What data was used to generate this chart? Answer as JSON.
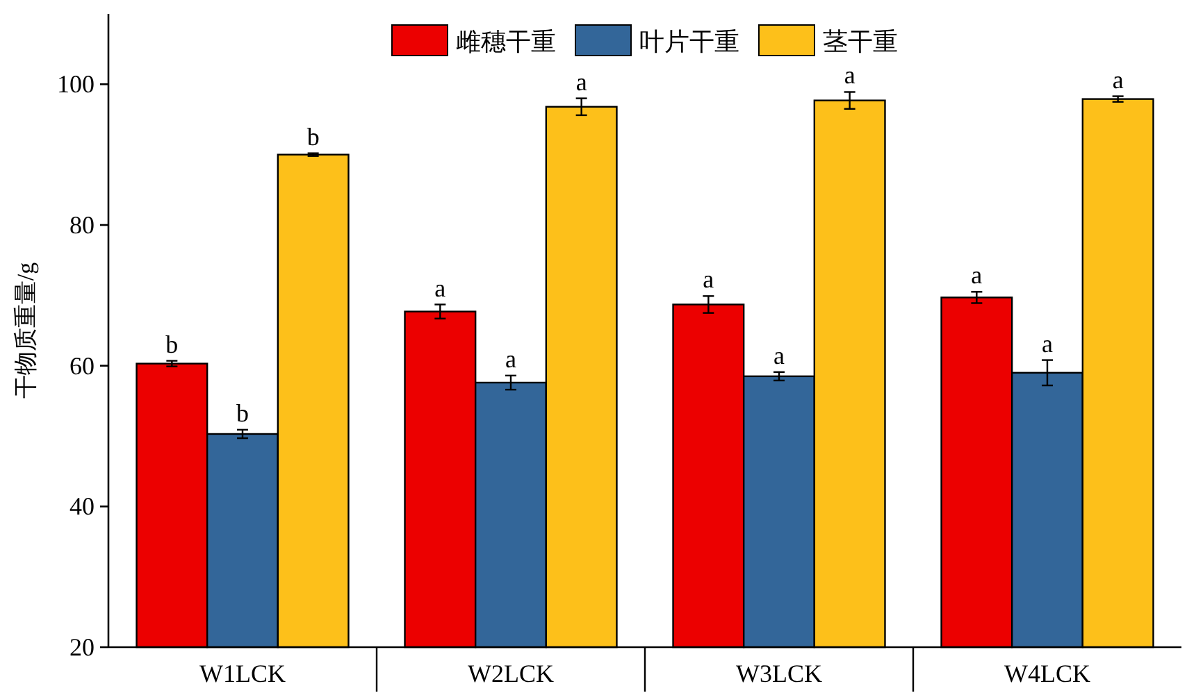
{
  "chart_data": {
    "type": "bar",
    "ylabel": "干物质重量/g",
    "categories": [
      "W1LCK",
      "W2LCK",
      "W3LCK",
      "W4LCK"
    ],
    "series": [
      {
        "name": "雌穗干重",
        "color": "#ec0000",
        "values": [
          60.3,
          67.7,
          68.7,
          69.7
        ],
        "errors": [
          0.4,
          1.0,
          1.2,
          0.8
        ],
        "value_labels": [
          "b",
          "a",
          "a",
          "a"
        ]
      },
      {
        "name": "叶片干重",
        "color": "#336699",
        "values": [
          50.3,
          57.6,
          58.5,
          59.0
        ],
        "errors": [
          0.6,
          1.0,
          0.6,
          1.8
        ],
        "value_labels": [
          "b",
          "a",
          "a",
          "a"
        ]
      },
      {
        "name": "茎干重",
        "color": "#fdc01a",
        "values": [
          90.0,
          96.8,
          97.7,
          97.9
        ],
        "errors": [
          0.2,
          1.2,
          1.2,
          0.4
        ],
        "value_labels": [
          "b",
          "a",
          "a",
          "a"
        ]
      }
    ],
    "ylim": [
      20,
      110
    ],
    "yticks": [
      20,
      40,
      60,
      80,
      100
    ],
    "legend": "top",
    "grid": false
  }
}
